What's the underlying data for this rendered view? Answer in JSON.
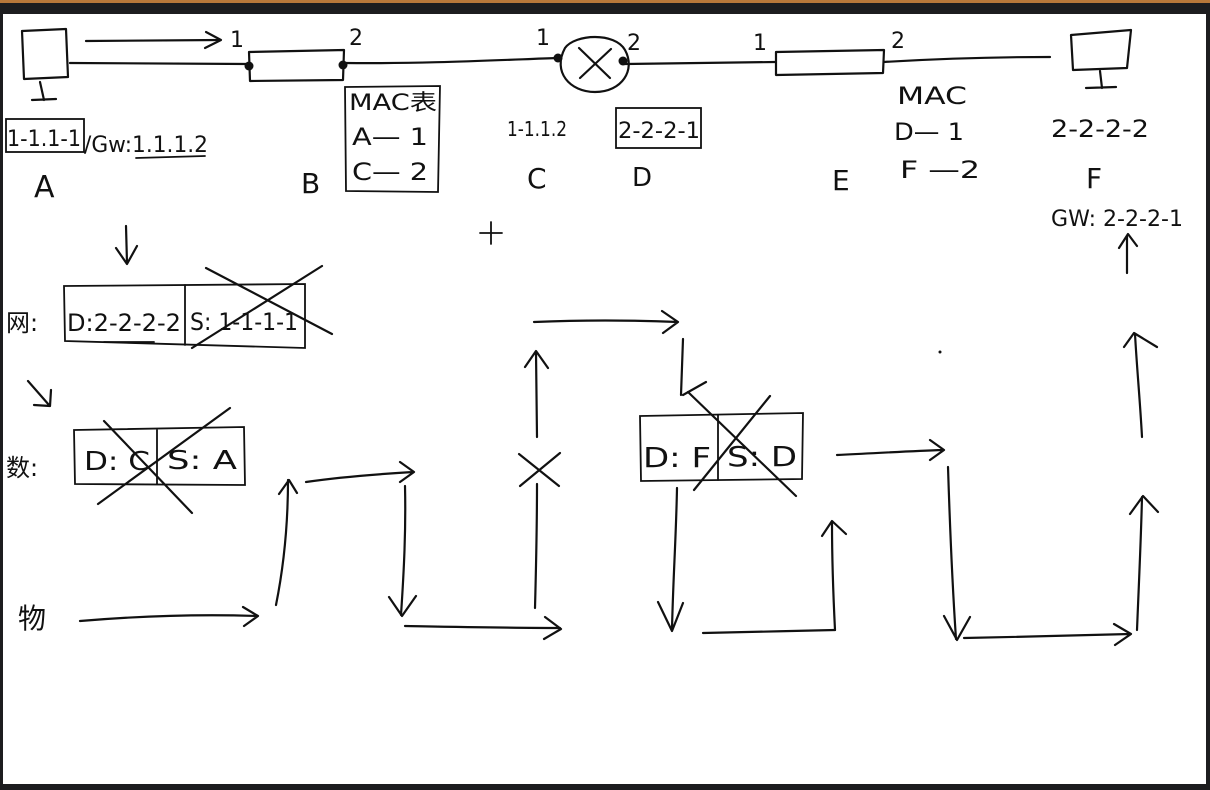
{
  "labels": {
    "port_b1": "1",
    "port_b2": "2",
    "port_c1": "1",
    "port_c2": "2",
    "port_e1": "1",
    "port_e2": "2",
    "ip_a": "1-1.1-1",
    "gw_a": "/Gw:1.1.1.2",
    "name_a": "A",
    "name_b": "B",
    "name_c": "C",
    "name_d": "D",
    "name_e": "E",
    "name_f": "F",
    "mac_table_b_title": "MAC表",
    "mac_table_b_row1": "A— 1",
    "mac_table_b_row2": "C— 2",
    "ip_c": "1-1.1.2",
    "ip_d": "2-2-2-1",
    "mac_table_e_title": "MAC",
    "mac_table_e_row1": "D— 1",
    "mac_table_e_row2": "F —2",
    "ip_f": "2-2-2-2",
    "gw_f": "GW: 2-2-2-1",
    "layer_network": "网:",
    "layer_datalink": "数:",
    "layer_physical": "物",
    "net_dest": "D:2-2-2-2",
    "net_src": "S: 1-1-1-1",
    "dl_dest_left": "D: C",
    "dl_src_left": "S: A",
    "dl_dest_right": "D: F",
    "dl_src_right": "S: D"
  }
}
